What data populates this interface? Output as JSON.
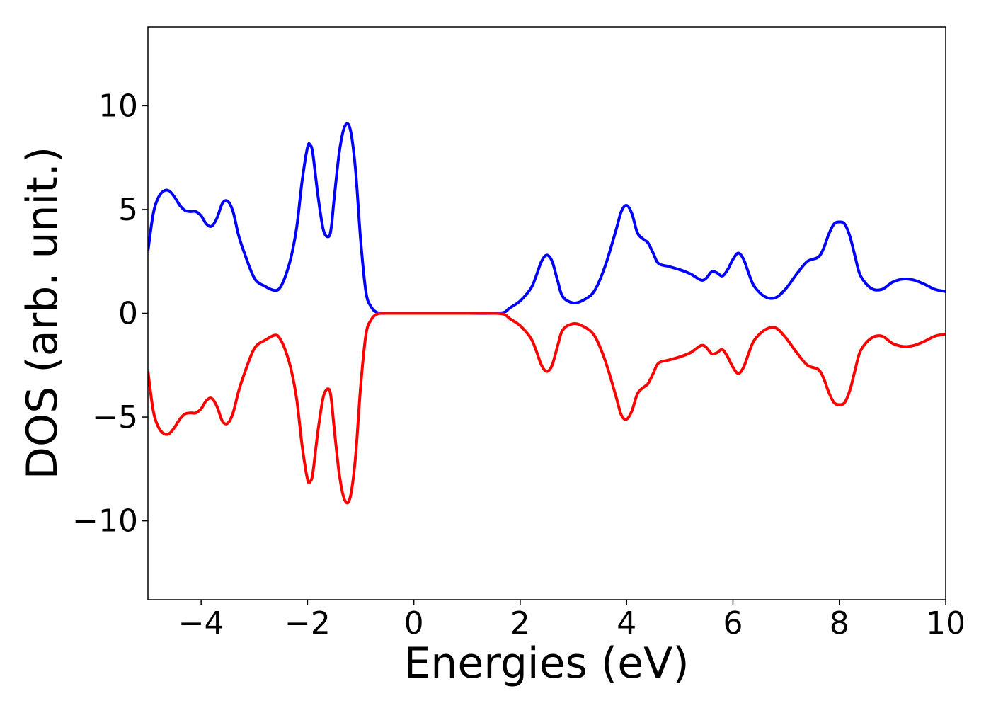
{
  "chart_data": {
    "type": "line",
    "title": "",
    "xlabel": "Energies (eV)",
    "ylabel": "DOS (arb. unit.)",
    "xlim": [
      -5,
      10
    ],
    "ylim": [
      -13.8,
      13.8
    ],
    "xticks": [
      -4,
      -2,
      0,
      2,
      4,
      6,
      8,
      10
    ],
    "xtick_labels": [
      "−4",
      "−2",
      "0",
      "2",
      "4",
      "6",
      "8",
      "10"
    ],
    "yticks": [
      10,
      5,
      0,
      -5,
      -10
    ],
    "ytick_labels": [
      "10",
      "5",
      "0",
      "−5",
      "−10"
    ],
    "grid": false,
    "legend": "none",
    "series": [
      {
        "color": "#0000ff",
        "x": [
          -5.0,
          -4.9,
          -4.8,
          -4.7,
          -4.6,
          -4.5,
          -4.4,
          -4.3,
          -4.2,
          -4.1,
          -4.0,
          -3.9,
          -3.8,
          -3.7,
          -3.6,
          -3.5,
          -3.4,
          -3.3,
          -3.2,
          -3.0,
          -2.8,
          -2.6,
          -2.5,
          -2.4,
          -2.3,
          -2.2,
          -2.1,
          -2.0,
          -1.95,
          -1.9,
          -1.8,
          -1.7,
          -1.6,
          -1.55,
          -1.5,
          -1.4,
          -1.3,
          -1.2,
          -1.1,
          -1.0,
          -0.9,
          -0.8,
          -0.7,
          -0.6,
          -0.5,
          -0.4,
          0.0,
          1.0,
          1.5,
          1.7,
          1.8,
          2.0,
          2.2,
          2.3,
          2.4,
          2.5,
          2.6,
          2.7,
          2.8,
          3.0,
          3.2,
          3.4,
          3.6,
          3.8,
          3.9,
          4.0,
          4.1,
          4.2,
          4.3,
          4.4,
          4.5,
          4.6,
          4.8,
          5.0,
          5.2,
          5.4,
          5.5,
          5.6,
          5.7,
          5.8,
          5.9,
          6.0,
          6.1,
          6.2,
          6.3,
          6.4,
          6.6,
          6.8,
          7.0,
          7.2,
          7.4,
          7.6,
          7.7,
          7.8,
          7.9,
          8.0,
          8.1,
          8.2,
          8.3,
          8.4,
          8.6,
          8.8,
          9.0,
          9.2,
          9.4,
          9.6,
          9.8,
          10.0
        ],
        "y": [
          3.0,
          4.8,
          5.6,
          5.9,
          5.9,
          5.6,
          5.2,
          4.95,
          4.9,
          4.9,
          4.7,
          4.3,
          4.2,
          4.6,
          5.3,
          5.4,
          4.9,
          3.8,
          3.0,
          1.7,
          1.3,
          1.1,
          1.3,
          1.9,
          2.8,
          4.2,
          6.4,
          8.0,
          8.1,
          7.7,
          5.6,
          4.0,
          3.7,
          4.2,
          5.5,
          7.8,
          9.0,
          8.9,
          7.0,
          3.5,
          1.0,
          0.3,
          0.05,
          0.0,
          0.0,
          0.0,
          0.0,
          0.0,
          0.0,
          0.05,
          0.25,
          0.6,
          1.2,
          1.8,
          2.5,
          2.8,
          2.5,
          1.6,
          0.8,
          0.5,
          0.65,
          1.1,
          2.3,
          4.0,
          4.9,
          5.2,
          4.8,
          3.9,
          3.6,
          3.4,
          2.9,
          2.4,
          2.25,
          2.1,
          1.9,
          1.6,
          1.7,
          2.0,
          1.95,
          1.8,
          2.1,
          2.6,
          2.9,
          2.6,
          1.9,
          1.3,
          0.8,
          0.75,
          1.2,
          1.9,
          2.5,
          2.7,
          3.1,
          3.8,
          4.3,
          4.4,
          4.3,
          3.7,
          2.7,
          1.8,
          1.2,
          1.15,
          1.5,
          1.65,
          1.6,
          1.4,
          1.15,
          1.05
        ]
      },
      {
        "color": "#ff0000",
        "x": [
          -5.0,
          -4.9,
          -4.8,
          -4.7,
          -4.6,
          -4.5,
          -4.4,
          -4.3,
          -4.2,
          -4.1,
          -4.0,
          -3.9,
          -3.8,
          -3.7,
          -3.6,
          -3.5,
          -3.4,
          -3.3,
          -3.2,
          -3.0,
          -2.8,
          -2.6,
          -2.5,
          -2.4,
          -2.3,
          -2.2,
          -2.1,
          -2.0,
          -1.95,
          -1.9,
          -1.8,
          -1.7,
          -1.6,
          -1.55,
          -1.5,
          -1.4,
          -1.3,
          -1.2,
          -1.1,
          -1.0,
          -0.9,
          -0.8,
          -0.7,
          -0.6,
          -0.5,
          -0.4,
          0.0,
          1.0,
          1.5,
          1.7,
          1.8,
          2.0,
          2.2,
          2.3,
          2.4,
          2.5,
          2.6,
          2.7,
          2.8,
          3.0,
          3.2,
          3.4,
          3.6,
          3.8,
          3.9,
          4.0,
          4.1,
          4.2,
          4.3,
          4.4,
          4.5,
          4.6,
          4.8,
          5.0,
          5.2,
          5.4,
          5.5,
          5.6,
          5.7,
          5.8,
          5.9,
          6.0,
          6.1,
          6.2,
          6.3,
          6.4,
          6.6,
          6.8,
          7.0,
          7.2,
          7.4,
          7.6,
          7.7,
          7.8,
          7.9,
          8.0,
          8.1,
          8.2,
          8.3,
          8.4,
          8.6,
          8.8,
          9.0,
          9.2,
          9.4,
          9.6,
          9.8,
          10.0
        ],
        "y": [
          -2.8,
          -4.7,
          -5.5,
          -5.8,
          -5.8,
          -5.5,
          -5.1,
          -4.85,
          -4.8,
          -4.8,
          -4.6,
          -4.2,
          -4.1,
          -4.5,
          -5.2,
          -5.3,
          -4.8,
          -3.8,
          -3.0,
          -1.7,
          -1.3,
          -1.05,
          -1.3,
          -1.9,
          -2.8,
          -4.2,
          -6.4,
          -8.0,
          -8.1,
          -7.7,
          -5.6,
          -4.0,
          -3.65,
          -4.2,
          -5.5,
          -7.8,
          -9.0,
          -8.9,
          -7.0,
          -3.5,
          -1.0,
          -0.3,
          -0.05,
          0.0,
          0.0,
          0.0,
          0.0,
          0.0,
          0.0,
          -0.05,
          -0.25,
          -0.6,
          -1.2,
          -1.8,
          -2.5,
          -2.8,
          -2.5,
          -1.6,
          -0.8,
          -0.5,
          -0.65,
          -1.1,
          -2.3,
          -4.0,
          -4.9,
          -5.1,
          -4.7,
          -3.9,
          -3.6,
          -3.4,
          -2.9,
          -2.4,
          -2.25,
          -2.1,
          -1.9,
          -1.55,
          -1.65,
          -1.95,
          -1.9,
          -1.75,
          -2.1,
          -2.6,
          -2.9,
          -2.6,
          -1.9,
          -1.3,
          -0.8,
          -0.7,
          -1.2,
          -1.9,
          -2.5,
          -2.7,
          -3.1,
          -3.8,
          -4.3,
          -4.4,
          -4.3,
          -3.7,
          -2.7,
          -1.8,
          -1.2,
          -1.1,
          -1.45,
          -1.6,
          -1.55,
          -1.35,
          -1.1,
          -1.0
        ]
      }
    ]
  }
}
